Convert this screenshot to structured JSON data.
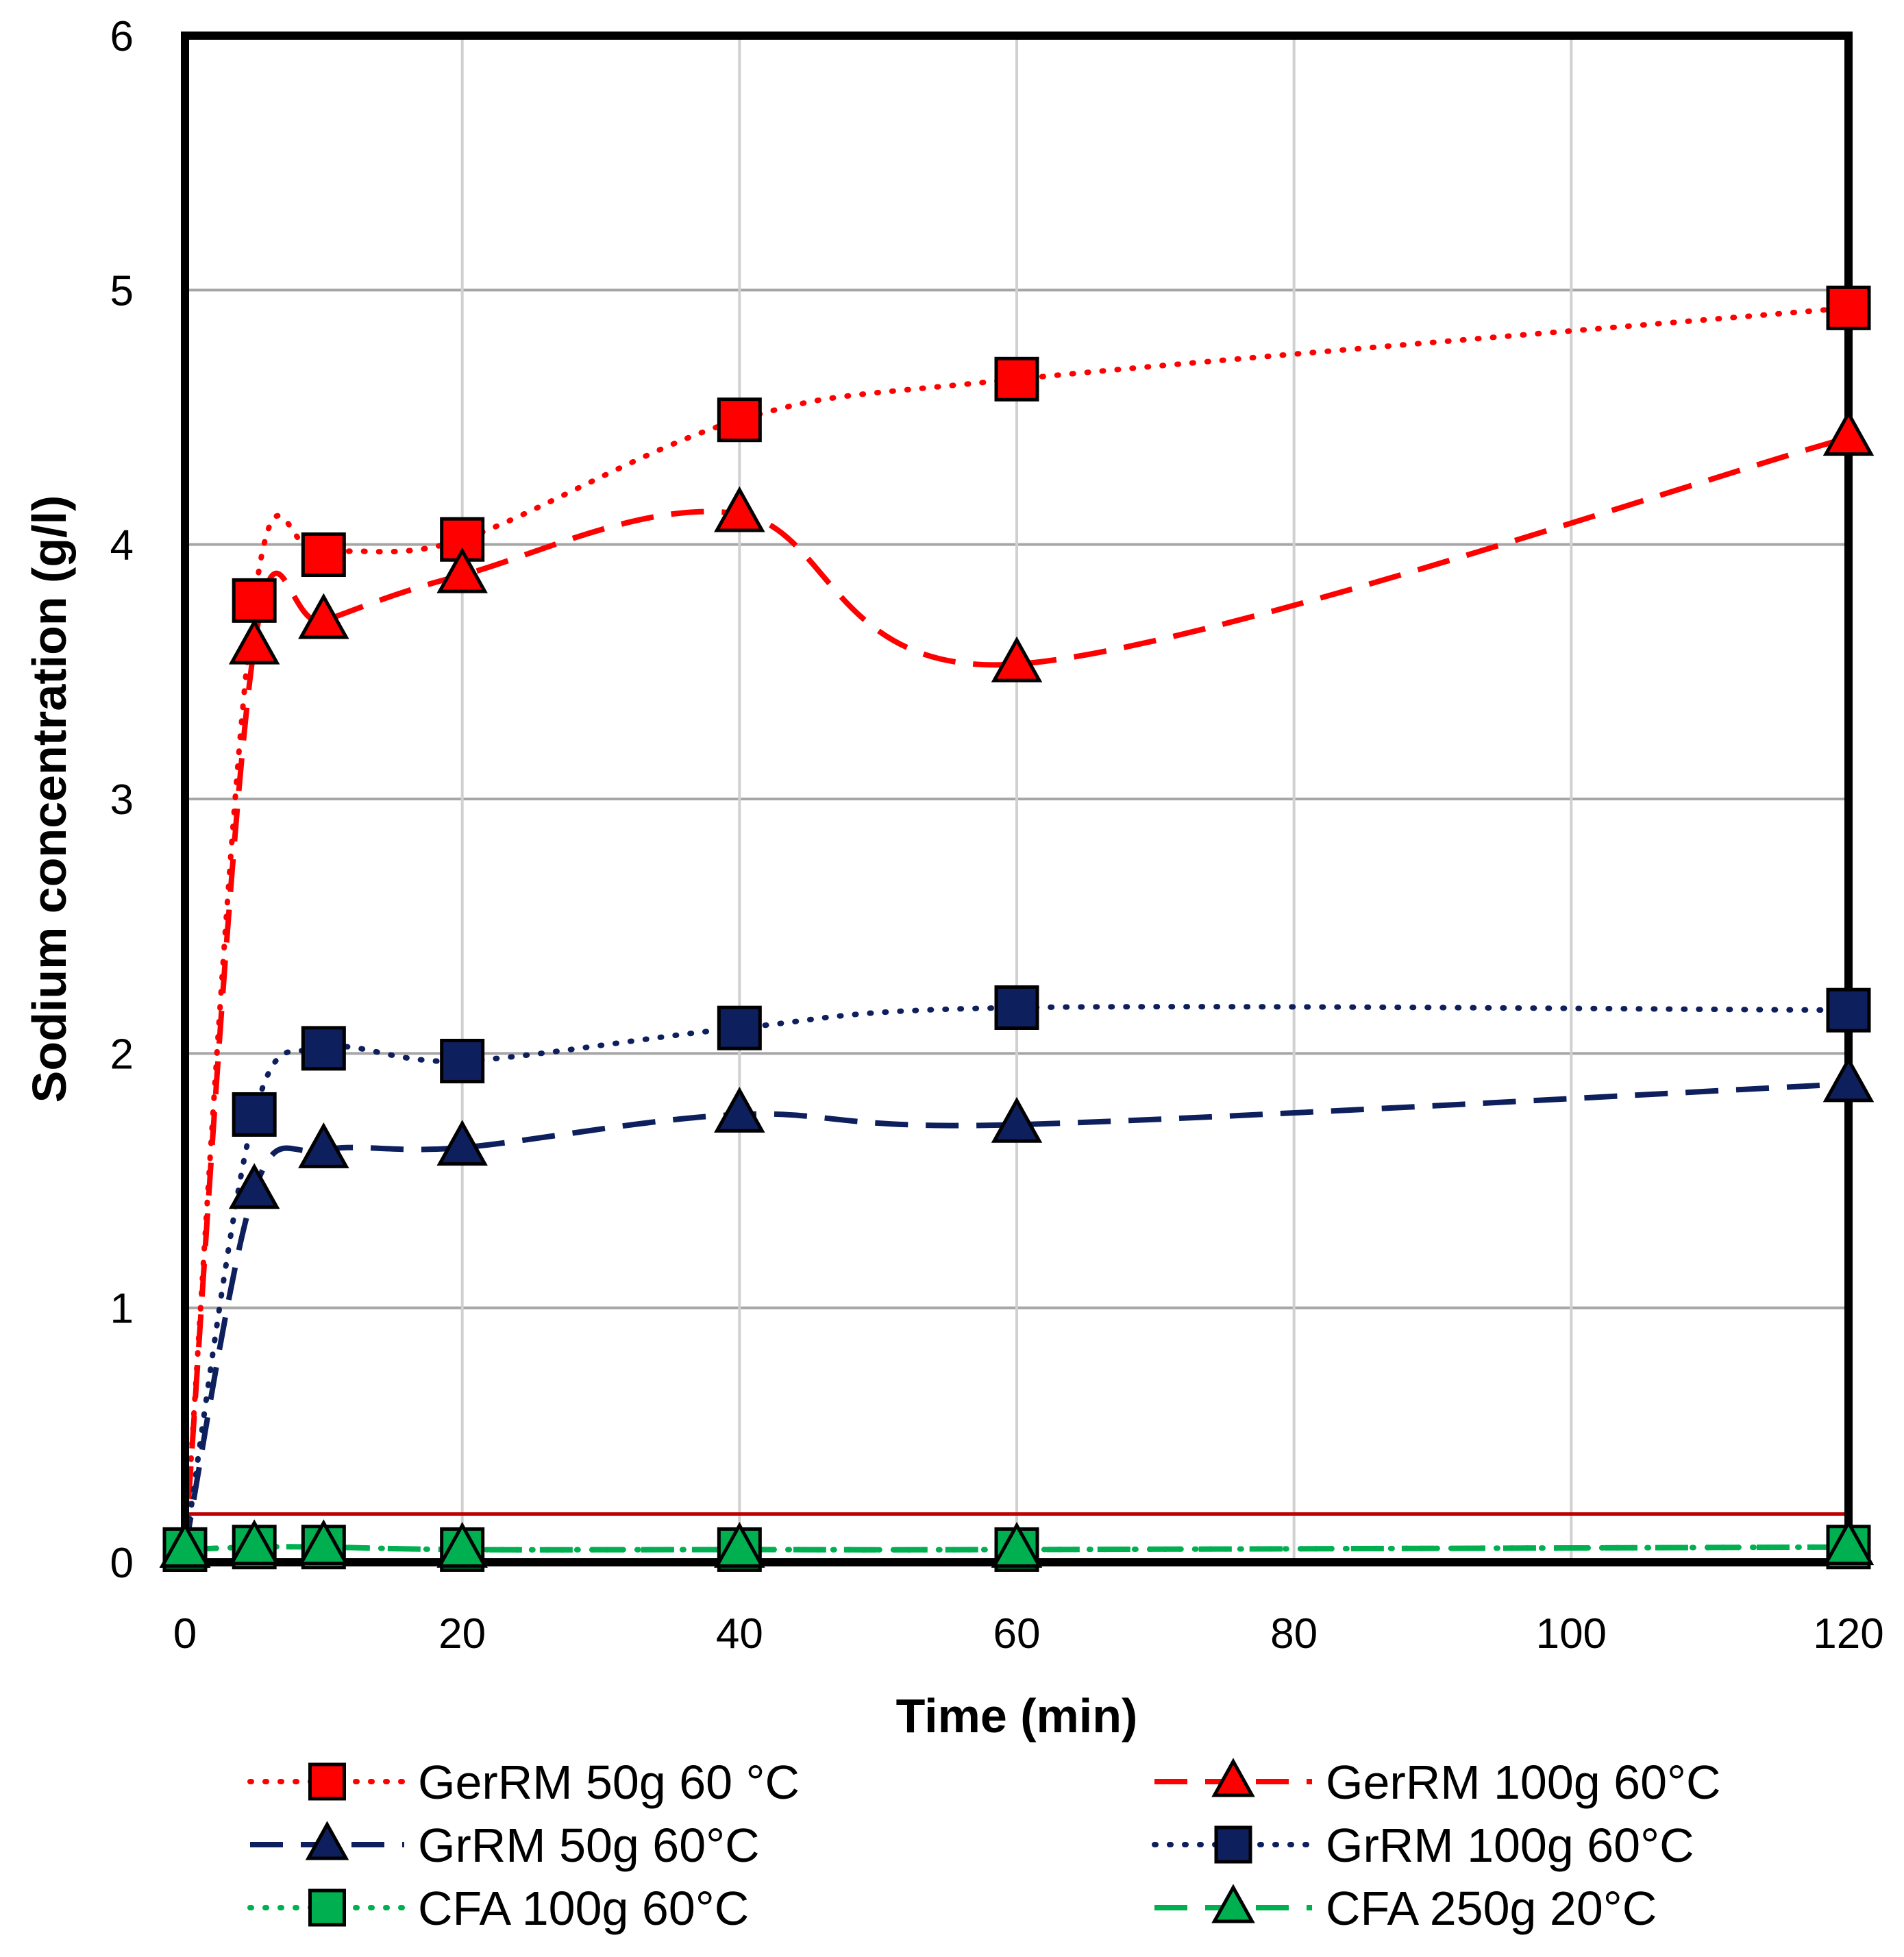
{
  "chart_data": {
    "type": "line",
    "title": "",
    "xlabel": "Time (min)",
    "ylabel": "Sodium concentration (g/l)",
    "xlim": [
      0,
      120
    ],
    "ylim": [
      0,
      6
    ],
    "xticks": [
      0,
      20,
      40,
      60,
      80,
      100,
      120
    ],
    "yticks": [
      0,
      1,
      2,
      3,
      4,
      5,
      6
    ],
    "grid": true,
    "legend_position": "bottom",
    "x": [
      0,
      5,
      10,
      20,
      40,
      60,
      120
    ],
    "series": [
      {
        "name": "GerRM 50g 60 °C",
        "color": "#ff0000",
        "dash": "dotted",
        "marker": "square",
        "values": [
          0.05,
          3.78,
          3.96,
          4.02,
          4.49,
          4.65,
          4.93
        ]
      },
      {
        "name": "GerRM 100g 60°C",
        "color": "#ff0000",
        "dash": "dashed",
        "marker": "triangle",
        "values": [
          0.05,
          3.6,
          3.7,
          3.88,
          4.12,
          3.53,
          4.42
        ]
      },
      {
        "name": "GrRM 50g 60°C",
        "color": "#0d1f5c",
        "dash": "dashed",
        "marker": "triangle",
        "values": [
          0.05,
          1.46,
          1.62,
          1.63,
          1.76,
          1.72,
          1.88
        ]
      },
      {
        "name": "GrRM 100g 60°C",
        "color": "#0d1f5c",
        "dash": "dotted",
        "marker": "square",
        "values": [
          0.05,
          1.76,
          2.02,
          1.97,
          2.1,
          2.18,
          2.17
        ]
      },
      {
        "name": "CFA 100g 60°C",
        "color": "#00b050",
        "dash": "dotted",
        "marker": "square",
        "values": [
          0.05,
          0.06,
          0.06,
          0.05,
          0.05,
          0.05,
          0.06
        ]
      },
      {
        "name": "CFA 250g 20°C",
        "color": "#00b050",
        "dash": "dashed",
        "marker": "triangle",
        "values": [
          0.05,
          0.06,
          0.06,
          0.05,
          0.05,
          0.05,
          0.06
        ]
      }
    ],
    "reference_line": {
      "y": 0.19,
      "color": "#c00000",
      "x_range": [
        0,
        120
      ]
    }
  }
}
